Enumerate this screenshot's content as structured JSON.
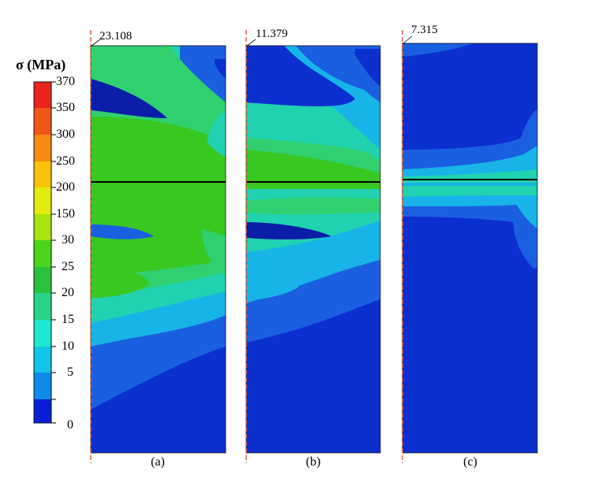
{
  "legend": {
    "title": "σ (MPa)",
    "ticks": [
      "370",
      "350",
      "300",
      "250",
      "200",
      "150",
      "30",
      "25",
      "20",
      "15",
      "10",
      "5",
      "0"
    ],
    "colors": [
      "#e8241c",
      "#f0561a",
      "#f58a14",
      "#fbc20c",
      "#e2ea10",
      "#a8e212",
      "#4ad41a",
      "#2ac23a",
      "#28d48c",
      "#1ce8d0",
      "#14c4e8",
      "#0e8ae8",
      "#0a52e4",
      "#0a1ed8"
    ]
  },
  "panels": [
    {
      "caption": "(a)",
      "max_value": "23.108"
    },
    {
      "caption": "(b)",
      "max_value": "11.379"
    },
    {
      "caption": "(c)",
      "max_value": "7.315"
    }
  ],
  "contour_colors": {
    "deep_blue": "#0c2fd0",
    "dark_navy": "#0a1ea8",
    "mid_blue": "#1a5fe0",
    "cyan": "#18b4e8",
    "teal": "#20d2b0",
    "light_green": "#30d070",
    "green": "#38c820",
    "axis_red": "#e06040"
  }
}
